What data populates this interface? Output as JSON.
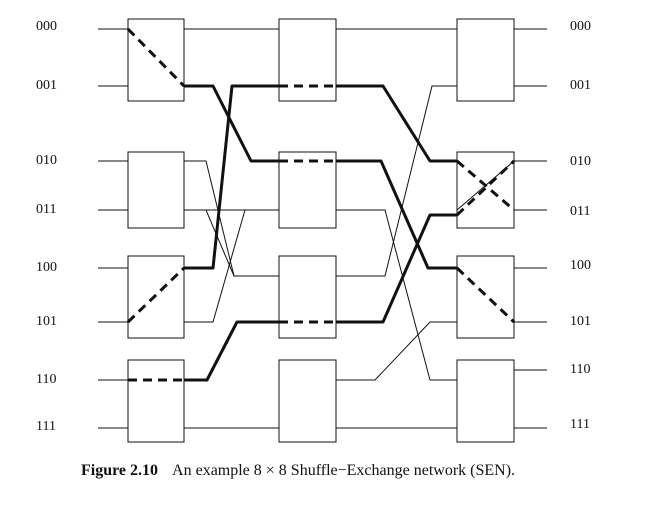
{
  "diagram": {
    "input_labels": [
      "000",
      "001",
      "010",
      "011",
      "100",
      "101",
      "110",
      "111"
    ],
    "output_labels": [
      "000",
      "001",
      "010",
      "011",
      "100",
      "101",
      "110",
      "111"
    ],
    "switch_states": [
      [
        "cross",
        "straight",
        "straight",
        "straight"
      ],
      [
        "straight",
        "straight",
        "straight",
        "straight"
      ],
      [
        "straight",
        "cross",
        "cross",
        "straight"
      ]
    ]
  },
  "caption": {
    "figure_label": "Figure 2.10",
    "text": "An example 8 × 8 Shuffle−Exchange network (SEN)."
  },
  "colors": {
    "line": "#111111",
    "background": "#ffffff"
  }
}
